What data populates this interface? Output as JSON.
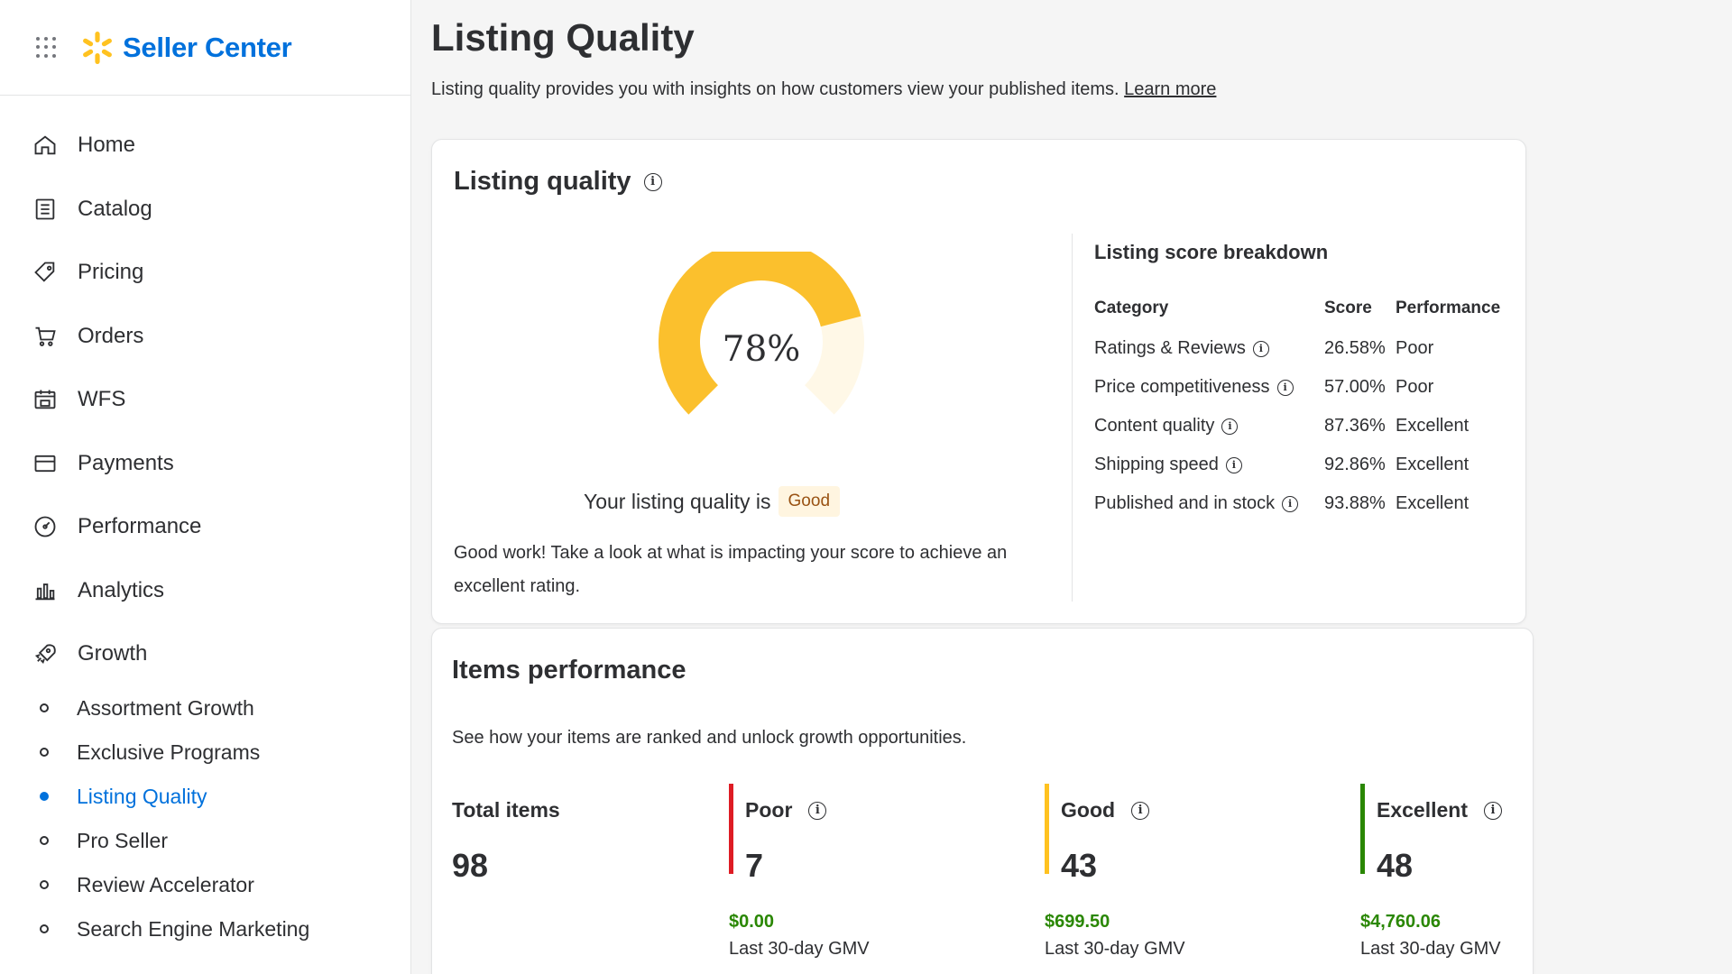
{
  "colors": {
    "brand_blue": "#0071dc",
    "walmart_yellow": "#ffc220",
    "gauge_yellow": "#fbc02d",
    "gauge_track": "#fff8e7",
    "poor_red": "#de1c24",
    "good_yellow": "#ffc220",
    "excellent_green": "#2a8703",
    "gmv_green": "#2a8703"
  },
  "header": {
    "app_name": "Seller Center",
    "apps_icon": "apps-grid-icon",
    "logo_icon": "walmart-spark-icon"
  },
  "sidebar": {
    "items": [
      {
        "label": "Home",
        "icon": "home-icon"
      },
      {
        "label": "Catalog",
        "icon": "catalog-icon"
      },
      {
        "label": "Pricing",
        "icon": "price-tag-icon"
      },
      {
        "label": "Orders",
        "icon": "cart-icon"
      },
      {
        "label": "WFS",
        "icon": "warehouse-icon"
      },
      {
        "label": "Payments",
        "icon": "card-icon"
      },
      {
        "label": "Performance",
        "icon": "gauge-icon"
      },
      {
        "label": "Analytics",
        "icon": "bar-chart-icon"
      },
      {
        "label": "Growth",
        "icon": "rocket-icon"
      }
    ],
    "sub_items": [
      {
        "label": "Assortment Growth",
        "active": false
      },
      {
        "label": "Exclusive Programs",
        "active": false
      },
      {
        "label": "Listing Quality",
        "active": true
      },
      {
        "label": "Pro Seller",
        "active": false
      },
      {
        "label": "Review Accelerator",
        "active": false
      },
      {
        "label": "Search Engine Marketing",
        "active": false
      }
    ]
  },
  "page": {
    "title": "Listing Quality",
    "description": "Listing quality provides you with insights on how customers view your published items.",
    "learn_more": "Learn more"
  },
  "listing_quality_card": {
    "title": "Listing quality",
    "score_label": "78%",
    "score_value": 78,
    "quality_prefix": "Your listing quality is",
    "quality_badge": "Good",
    "message": "Good work! Take a look at what is impacting your score to achieve an excellent rating.",
    "breakdown": {
      "title": "Listing score breakdown",
      "headers": {
        "category": "Category",
        "score": "Score",
        "performance": "Performance"
      },
      "rows": [
        {
          "category": "Ratings & Reviews",
          "score": "26.58%",
          "performance": "Poor"
        },
        {
          "category": "Price competitiveness",
          "score": "57.00%",
          "performance": "Poor"
        },
        {
          "category": "Content quality",
          "score": "87.36%",
          "performance": "Excellent"
        },
        {
          "category": "Shipping speed",
          "score": "92.86%",
          "performance": "Excellent"
        },
        {
          "category": "Published and in stock",
          "score": "93.88%",
          "performance": "Excellent"
        }
      ]
    }
  },
  "items_performance": {
    "title": "Items performance",
    "description": "See how your items are ranked and unlock growth opportunities.",
    "total": {
      "label": "Total items",
      "value": "98"
    },
    "metrics": [
      {
        "label": "Poor",
        "value": "7",
        "gmv": "$0.00",
        "gmv_label": "Last 30-day GMV"
      },
      {
        "label": "Good",
        "value": "43",
        "gmv": "$699.50",
        "gmv_label": "Last 30-day GMV"
      },
      {
        "label": "Excellent",
        "value": "48",
        "gmv": "$4,760.06",
        "gmv_label": "Last 30-day GMV"
      }
    ]
  }
}
